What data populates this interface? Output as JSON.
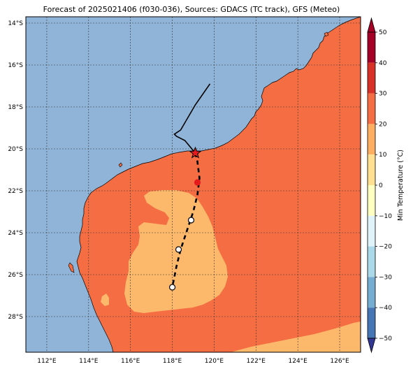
{
  "title": "Forecast of 2025021406 (f030-036), Sources: GDACS (TC track), GFS (Meteo)",
  "map": {
    "lon_labels": [
      "112°E",
      "114°E",
      "116°E",
      "118°E",
      "120°E",
      "122°E",
      "124°E",
      "126°E"
    ],
    "lat_labels": [
      "14°S",
      "16°S",
      "18°S",
      "20°S",
      "22°S",
      "24°S",
      "26°S",
      "28°S"
    ],
    "lon_range": [
      111,
      127
    ],
    "lat_range": [
      -29.7,
      -13.7
    ]
  },
  "colors": {
    "ocean": "#8fb4d8",
    "land_20_30": "#f46d43",
    "land_10_20": "#fdb96b",
    "track": "#000000",
    "current_position": "#e41a1c"
  },
  "track": {
    "observed": [
      [
        119.8,
        -16.9
      ],
      [
        119.1,
        -17.9
      ],
      [
        118.4,
        -19.1
      ],
      [
        118.1,
        -19.3
      ],
      [
        118.2,
        -19.4
      ],
      [
        118.6,
        -19.6
      ],
      [
        119.1,
        -20.2
      ]
    ],
    "current": [
      119.1,
      -20.2
    ],
    "forecast": [
      [
        119.1,
        -20.2
      ],
      [
        119.2,
        -20.6
      ],
      [
        119.3,
        -21.4
      ],
      [
        119.2,
        -22.2
      ],
      [
        119.0,
        -23.0
      ],
      [
        118.7,
        -23.9
      ],
      [
        118.4,
        -24.8
      ],
      [
        118.2,
        -25.6
      ],
      [
        118.0,
        -26.6
      ]
    ],
    "forecast_points": [
      [
        119.2,
        -21.6
      ],
      [
        118.9,
        -23.4
      ],
      [
        118.3,
        -24.8
      ],
      [
        118.0,
        -26.6
      ]
    ]
  },
  "colorbar": {
    "label": "Min Temperature (°C)",
    "ticks": [
      "50",
      "40",
      "30",
      "20",
      "10",
      "0",
      "−10",
      "−20",
      "−30",
      "−40",
      "−50"
    ],
    "colors": [
      "#a50026",
      "#d73027",
      "#f46d43",
      "#fdae61",
      "#fee090",
      "#ffffbf",
      "#e0f3f8",
      "#abd9e9",
      "#74add1",
      "#4575b4",
      "#313695"
    ],
    "extend": "both"
  }
}
